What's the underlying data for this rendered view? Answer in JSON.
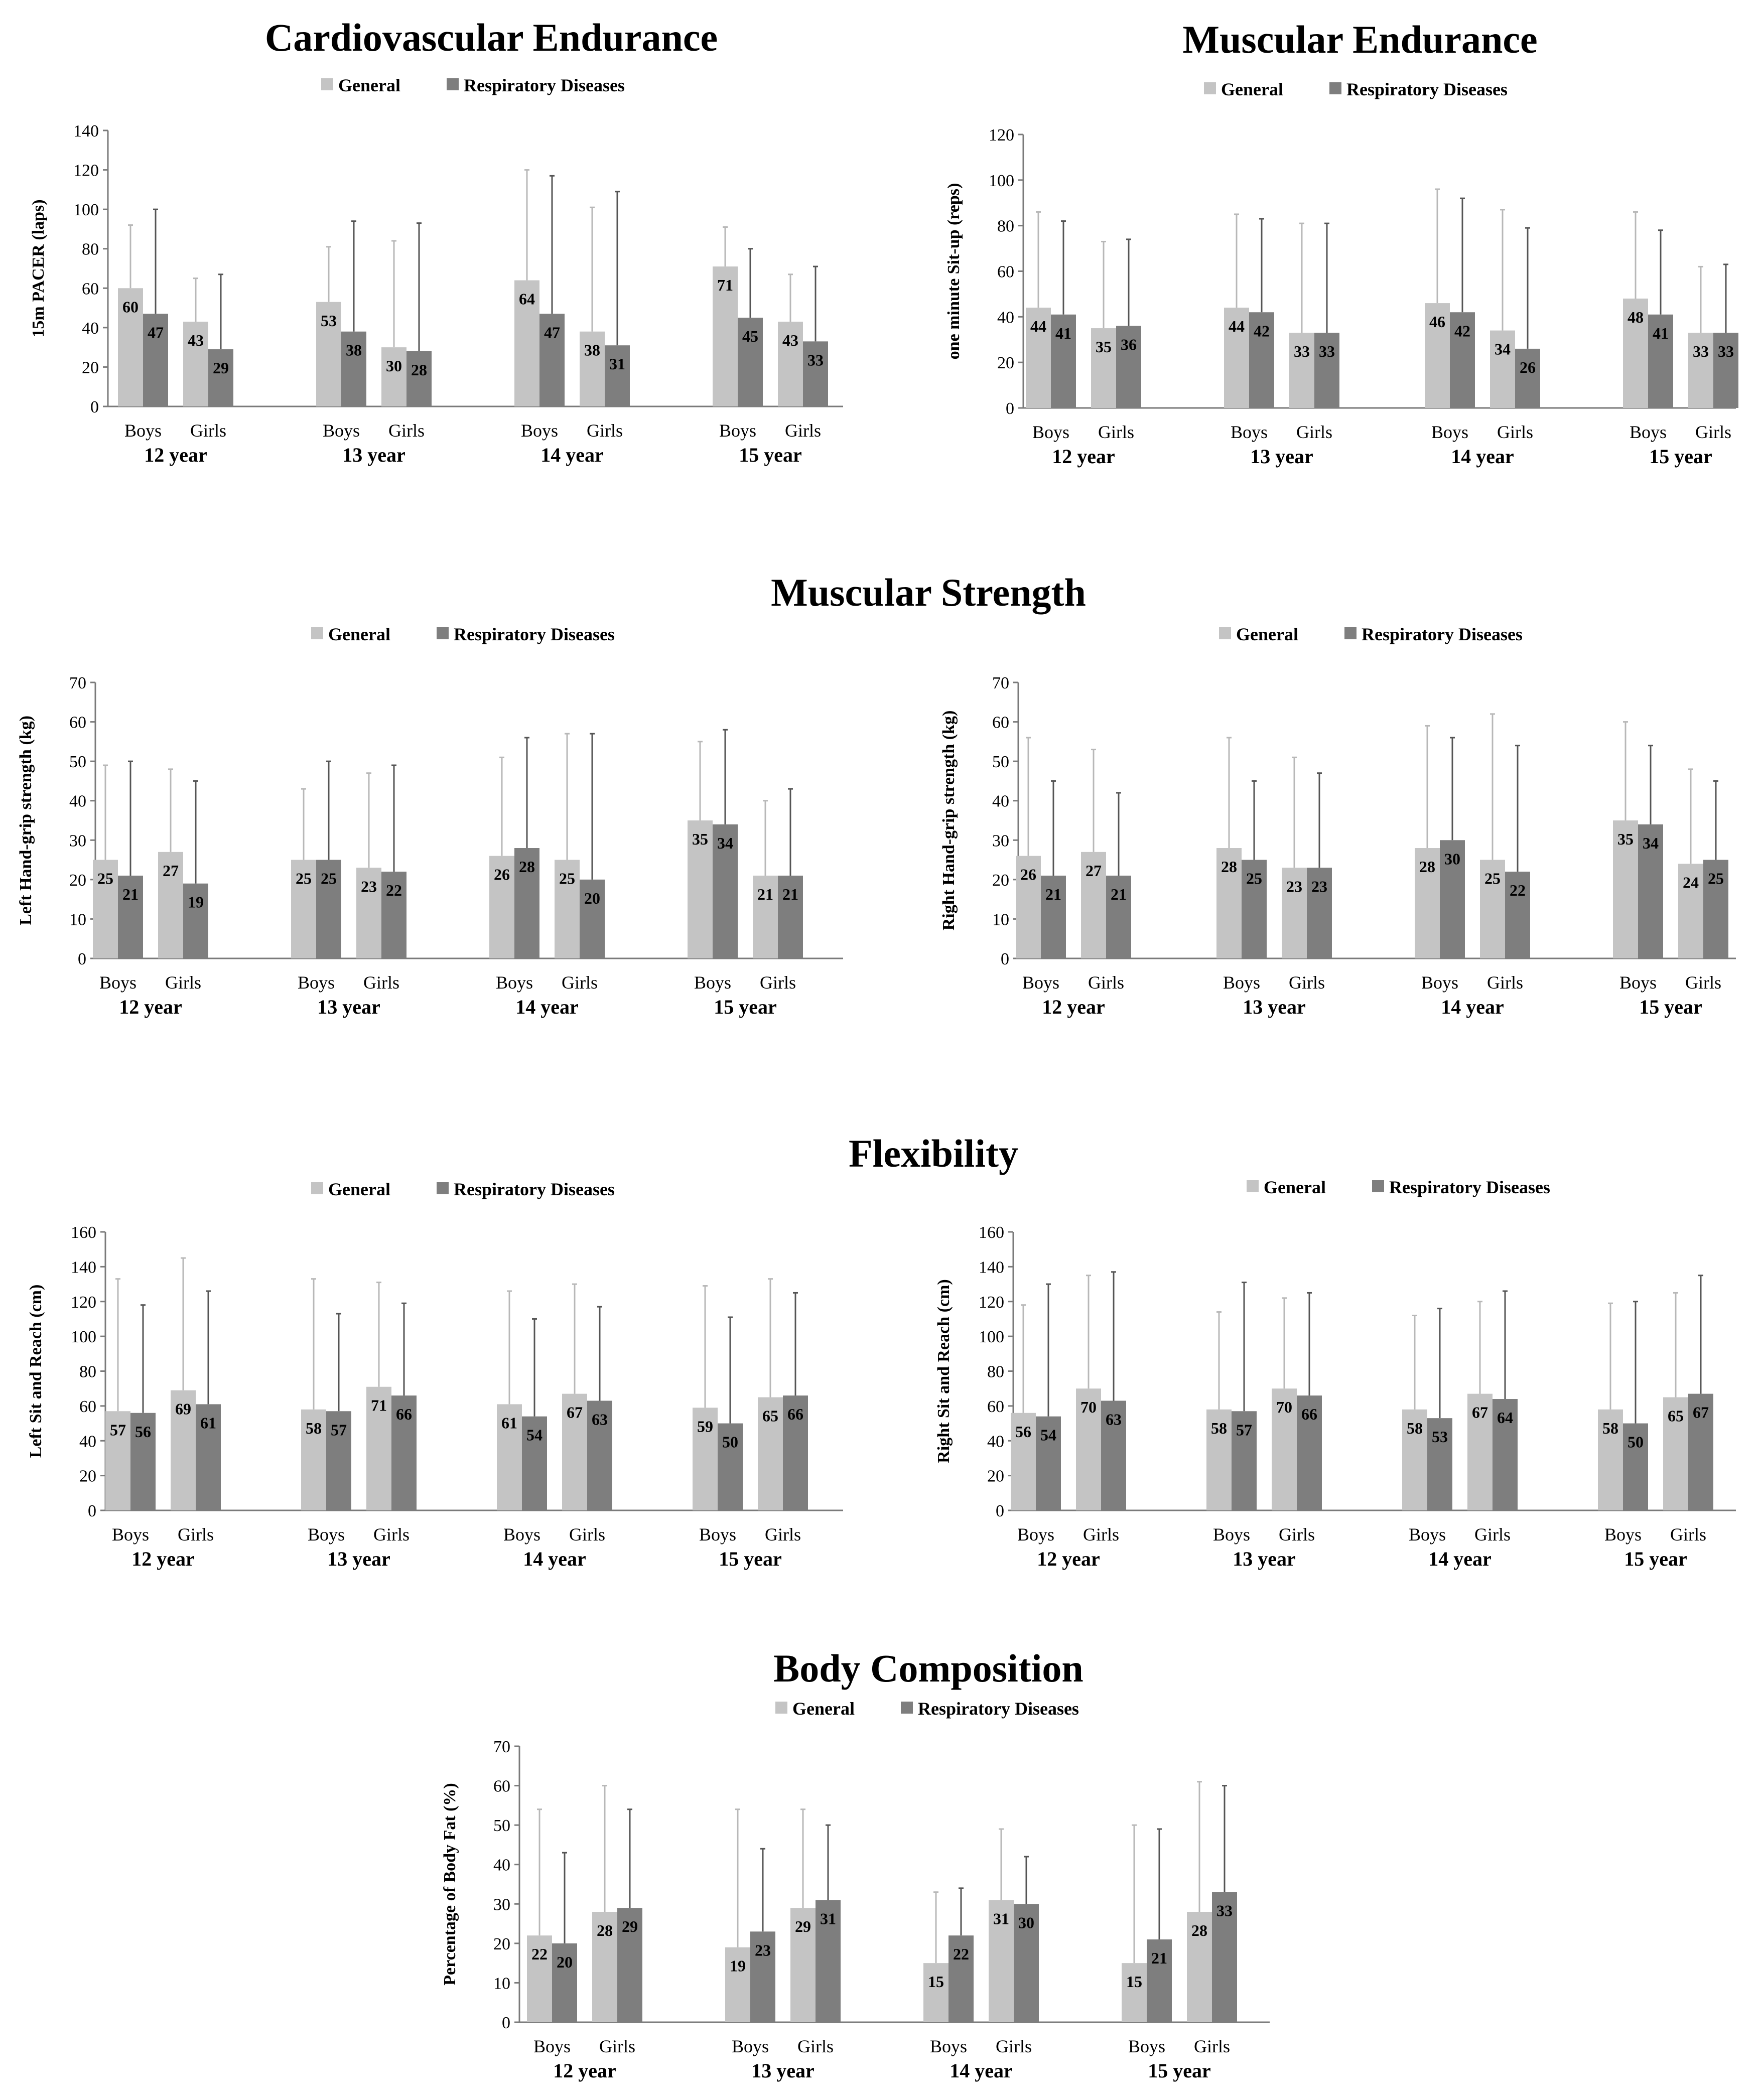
{
  "page": {
    "section_titles": {
      "cardio": "Cardiovascular Endurance",
      "muscular_endurance": "Muscular Endurance",
      "muscular_strength": "Muscular Strength",
      "flexibility": "Flexibility",
      "body_composition": "Body Composition"
    }
  },
  "colors": {
    "general": "#c4c4c4",
    "respiratory": "#7e7e7e",
    "axis": "#7a7a7a",
    "error_bar_general": "#b8b8b8",
    "error_bar_respiratory": "#555555"
  },
  "chart_data": [
    {
      "id": "cardio",
      "type": "bar",
      "title": "Cardiovascular Endurance",
      "ylabel": "15m PACER (laps)",
      "ylim": [
        0,
        140
      ],
      "yticks": [
        0,
        20,
        40,
        60,
        80,
        100,
        120,
        140
      ],
      "legend": [
        "General",
        "Respiratory Diseases"
      ],
      "groups": [
        "12 year",
        "13 year",
        "14 year",
        "15 year"
      ],
      "subgroups": [
        "Boys",
        "Girls"
      ],
      "series": [
        {
          "name": "General",
          "values": [
            60,
            43,
            53,
            30,
            64,
            38,
            71,
            43
          ],
          "error_top": [
            92,
            65,
            81,
            84,
            120,
            101,
            91,
            67
          ]
        },
        {
          "name": "Respiratory Diseases",
          "values": [
            47,
            29,
            38,
            28,
            47,
            31,
            45,
            33
          ],
          "error_top": [
            100,
            67,
            94,
            93,
            117,
            109,
            80,
            71
          ]
        }
      ]
    },
    {
      "id": "sit_up",
      "type": "bar",
      "title": "Muscular Endurance",
      "ylabel": "one minute Sit-up (reps)",
      "ylim": [
        0,
        120
      ],
      "yticks": [
        0,
        20,
        40,
        60,
        80,
        100,
        120
      ],
      "legend": [
        "General",
        "Respiratory Diseases"
      ],
      "groups": [
        "12 year",
        "13 year",
        "14 year",
        "15 year"
      ],
      "subgroups": [
        "Boys",
        "Girls"
      ],
      "series": [
        {
          "name": "General",
          "values": [
            44,
            35,
            44,
            33,
            46,
            34,
            48,
            33
          ],
          "error_top": [
            86,
            73,
            85,
            81,
            96,
            87,
            86,
            62
          ]
        },
        {
          "name": "Respiratory Diseases",
          "values": [
            41,
            36,
            42,
            33,
            42,
            26,
            41,
            33
          ],
          "error_top": [
            82,
            74,
            83,
            81,
            92,
            79,
            78,
            63
          ]
        }
      ]
    },
    {
      "id": "left_grip",
      "type": "bar",
      "title": "Muscular Strength",
      "ylabel": "Left Hand-grip strength (kg)",
      "ylim": [
        0,
        70
      ],
      "yticks": [
        0,
        10,
        20,
        30,
        40,
        50,
        60,
        70
      ],
      "legend": [
        "General",
        "Respiratory Diseases"
      ],
      "groups": [
        "12 year",
        "13 year",
        "14 year",
        "15 year"
      ],
      "subgroups": [
        "Boys",
        "Girls"
      ],
      "series": [
        {
          "name": "General",
          "values": [
            25,
            27,
            25,
            23,
            26,
            25,
            35,
            21
          ],
          "error_top": [
            49,
            48,
            43,
            47,
            51,
            57,
            55,
            40
          ]
        },
        {
          "name": "Respiratory Diseases",
          "values": [
            21,
            19,
            25,
            22,
            28,
            20,
            34,
            21
          ],
          "error_top": [
            50,
            45,
            50,
            49,
            56,
            57,
            58,
            43
          ]
        }
      ]
    },
    {
      "id": "right_grip",
      "type": "bar",
      "title": "Muscular Strength",
      "ylabel": "Right Hand-grip strength (kg)",
      "ylim": [
        0,
        70
      ],
      "yticks": [
        0,
        10,
        20,
        30,
        40,
        50,
        60,
        70
      ],
      "legend": [
        "General",
        "Respiratory Diseases"
      ],
      "groups": [
        "12 year",
        "13 year",
        "14 year",
        "15 year"
      ],
      "subgroups": [
        "Boys",
        "Girls"
      ],
      "series": [
        {
          "name": "General",
          "values": [
            26,
            27,
            28,
            23,
            28,
            25,
            35,
            24
          ],
          "error_top": [
            56,
            53,
            56,
            51,
            59,
            62,
            60,
            48
          ]
        },
        {
          "name": "Respiratory Diseases",
          "values": [
            21,
            21,
            25,
            23,
            30,
            22,
            34,
            25
          ],
          "error_top": [
            45,
            42,
            45,
            47,
            56,
            54,
            54,
            45
          ]
        }
      ]
    },
    {
      "id": "left_sit_reach",
      "type": "bar",
      "title": "Flexibility",
      "ylabel": "Left Sit and Reach (cm)",
      "ylim": [
        0,
        160
      ],
      "yticks": [
        0,
        20,
        40,
        60,
        80,
        100,
        120,
        140,
        160
      ],
      "legend": [
        "General",
        "Respiratory Diseases"
      ],
      "groups": [
        "12 year",
        "13 year",
        "14 year",
        "15 year"
      ],
      "subgroups": [
        "Boys",
        "Girls"
      ],
      "series": [
        {
          "name": "General",
          "values": [
            57,
            69,
            58,
            71,
            61,
            67,
            59,
            65
          ],
          "error_top": [
            133,
            145,
            133,
            131,
            126,
            130,
            129,
            133
          ]
        },
        {
          "name": "Respiratory Diseases",
          "values": [
            56,
            61,
            57,
            66,
            54,
            63,
            50,
            66
          ],
          "error_top": [
            118,
            126,
            113,
            119,
            110,
            117,
            111,
            125
          ]
        }
      ]
    },
    {
      "id": "right_sit_reach",
      "type": "bar",
      "title": "Flexibility",
      "ylabel": "Right Sit and Reach (cm)",
      "ylim": [
        0,
        160
      ],
      "yticks": [
        0,
        20,
        40,
        60,
        80,
        100,
        120,
        140,
        160
      ],
      "legend": [
        "General",
        "Respiratory Diseases"
      ],
      "groups": [
        "12 year",
        "13 year",
        "14 year",
        "15 year"
      ],
      "subgroups": [
        "Boys",
        "Girls"
      ],
      "series": [
        {
          "name": "General",
          "values": [
            56,
            70,
            58,
            70,
            58,
            67,
            58,
            65
          ],
          "error_top": [
            118,
            135,
            114,
            122,
            112,
            120,
            119,
            125
          ]
        },
        {
          "name": "Respiratory Diseases",
          "values": [
            54,
            63,
            57,
            66,
            53,
            64,
            50,
            67
          ],
          "error_top": [
            130,
            137,
            131,
            125,
            116,
            126,
            120,
            135
          ]
        }
      ]
    },
    {
      "id": "body_fat",
      "type": "bar",
      "title": "Body Composition",
      "ylabel": "Percentage of Body Fat (%)",
      "ylim": [
        0,
        70
      ],
      "yticks": [
        0,
        10,
        20,
        30,
        40,
        50,
        60,
        70
      ],
      "legend": [
        "General",
        "Respiratory Diseases"
      ],
      "groups": [
        "12 year",
        "13 year",
        "14 year",
        "15 year"
      ],
      "subgroups": [
        "Boys",
        "Girls"
      ],
      "series": [
        {
          "name": "General",
          "values": [
            22,
            28,
            19,
            29,
            15,
            31,
            15,
            28
          ],
          "error_top": [
            54,
            60,
            54,
            54,
            33,
            49,
            50,
            61
          ]
        },
        {
          "name": "Respiratory Diseases",
          "values": [
            20,
            29,
            23,
            31,
            22,
            30,
            21,
            33
          ],
          "error_top": [
            43,
            54,
            44,
            50,
            34,
            42,
            49,
            60
          ]
        }
      ]
    }
  ]
}
